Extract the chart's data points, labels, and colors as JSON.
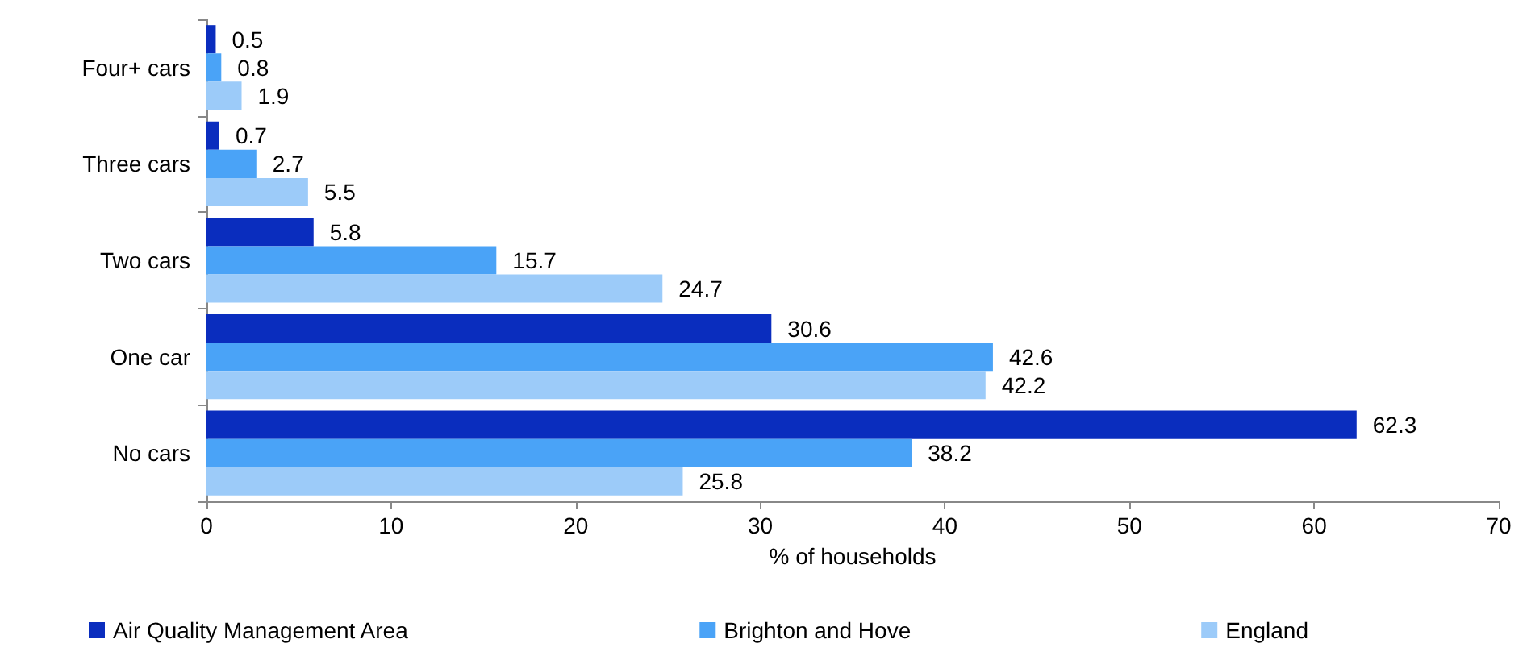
{
  "chart_data": {
    "type": "bar",
    "orientation": "horizontal",
    "xlabel": "% of households",
    "categories": [
      "Four+ cars",
      "Three cars",
      "Two cars",
      "One car",
      "No cars"
    ],
    "series": [
      {
        "name": "Air Quality Management Area",
        "color": "#0a2dbe",
        "values": [
          0.5,
          0.7,
          5.8,
          30.6,
          62.3
        ]
      },
      {
        "name": "Brighton and Hove",
        "color": "#4aa3f7",
        "values": [
          0.8,
          2.7,
          15.7,
          42.6,
          38.2
        ]
      },
      {
        "name": "England",
        "color": "#9ccbf9",
        "values": [
          1.9,
          5.5,
          24.7,
          42.2,
          25.8
        ]
      }
    ],
    "xlim": [
      0,
      70
    ],
    "xticks": [
      0,
      10,
      20,
      30,
      40,
      50,
      60,
      70
    ],
    "grid": false,
    "legend": "bottom",
    "data_labels": true
  }
}
